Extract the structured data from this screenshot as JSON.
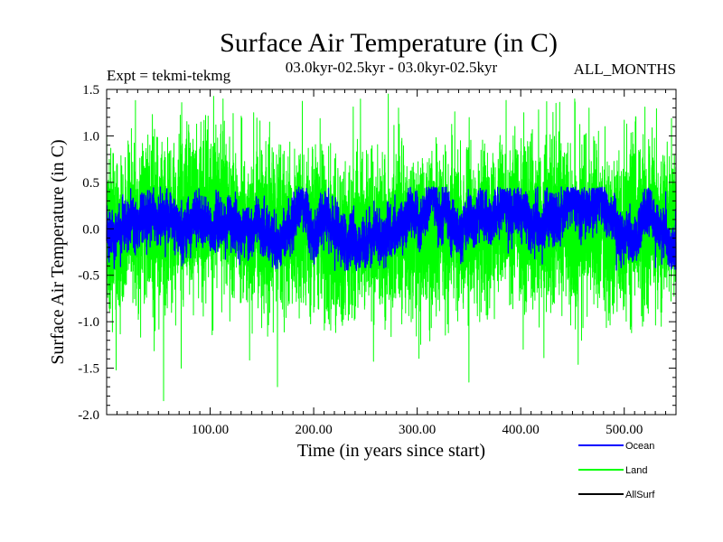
{
  "chart_data": {
    "type": "line",
    "title": "Surface Air Temperature (in C)",
    "subtitle_left": "Expt = tekmi-tekmg",
    "subtitle_center": "03.0kyr-02.5kyr - 03.0kyr-02.5kyr",
    "subtitle_right": "ALL_MONTHS",
    "xlabel": "Time (in years since start)",
    "ylabel": "Surface Air Temperature (in C)",
    "xlim": [
      0,
      550
    ],
    "ylim": [
      -2.0,
      1.5
    ],
    "x_ticks": [
      100,
      200,
      300,
      400,
      500
    ],
    "x_tick_labels": [
      "100.00",
      "200.00",
      "300.00",
      "400.00",
      "500.00"
    ],
    "y_ticks": [
      -2.0,
      -1.5,
      -1.0,
      -0.5,
      0.0,
      0.5,
      1.0,
      1.5
    ],
    "y_tick_labels": [
      "-2.0",
      "-1.5",
      "-1.0",
      "-0.5",
      "0.0",
      "0.5",
      "1.0",
      "1.5"
    ],
    "n_points": 6600,
    "series": [
      {
        "name": "Land",
        "color": "#00ff00",
        "noise_std": 0.42,
        "slow_amplitude": 0.08,
        "min": -1.85,
        "max": 1.45,
        "extremes": [
          [
            55,
            -1.85
          ],
          [
            72,
            -1.5
          ],
          [
            142,
            1.25
          ],
          [
            165,
            -1.7
          ],
          [
            272,
            1.45
          ],
          [
            282,
            1.3
          ],
          [
            350,
            -1.65
          ],
          [
            403,
            1.25
          ],
          [
            466,
            1.3
          ]
        ]
      },
      {
        "name": "Ocean",
        "color": "#0000ff",
        "noise_std": 0.13,
        "slow_amplitude": 0.15,
        "min": -0.45,
        "max": 0.45,
        "extremes": []
      },
      {
        "name": "AllSurf",
        "color": "#000000",
        "noise_std": 0.0,
        "slow_amplitude": 0.0,
        "min": 0.0,
        "max": 0.0,
        "extremes": []
      }
    ],
    "legend_position": "bottom-right",
    "grid": false
  }
}
